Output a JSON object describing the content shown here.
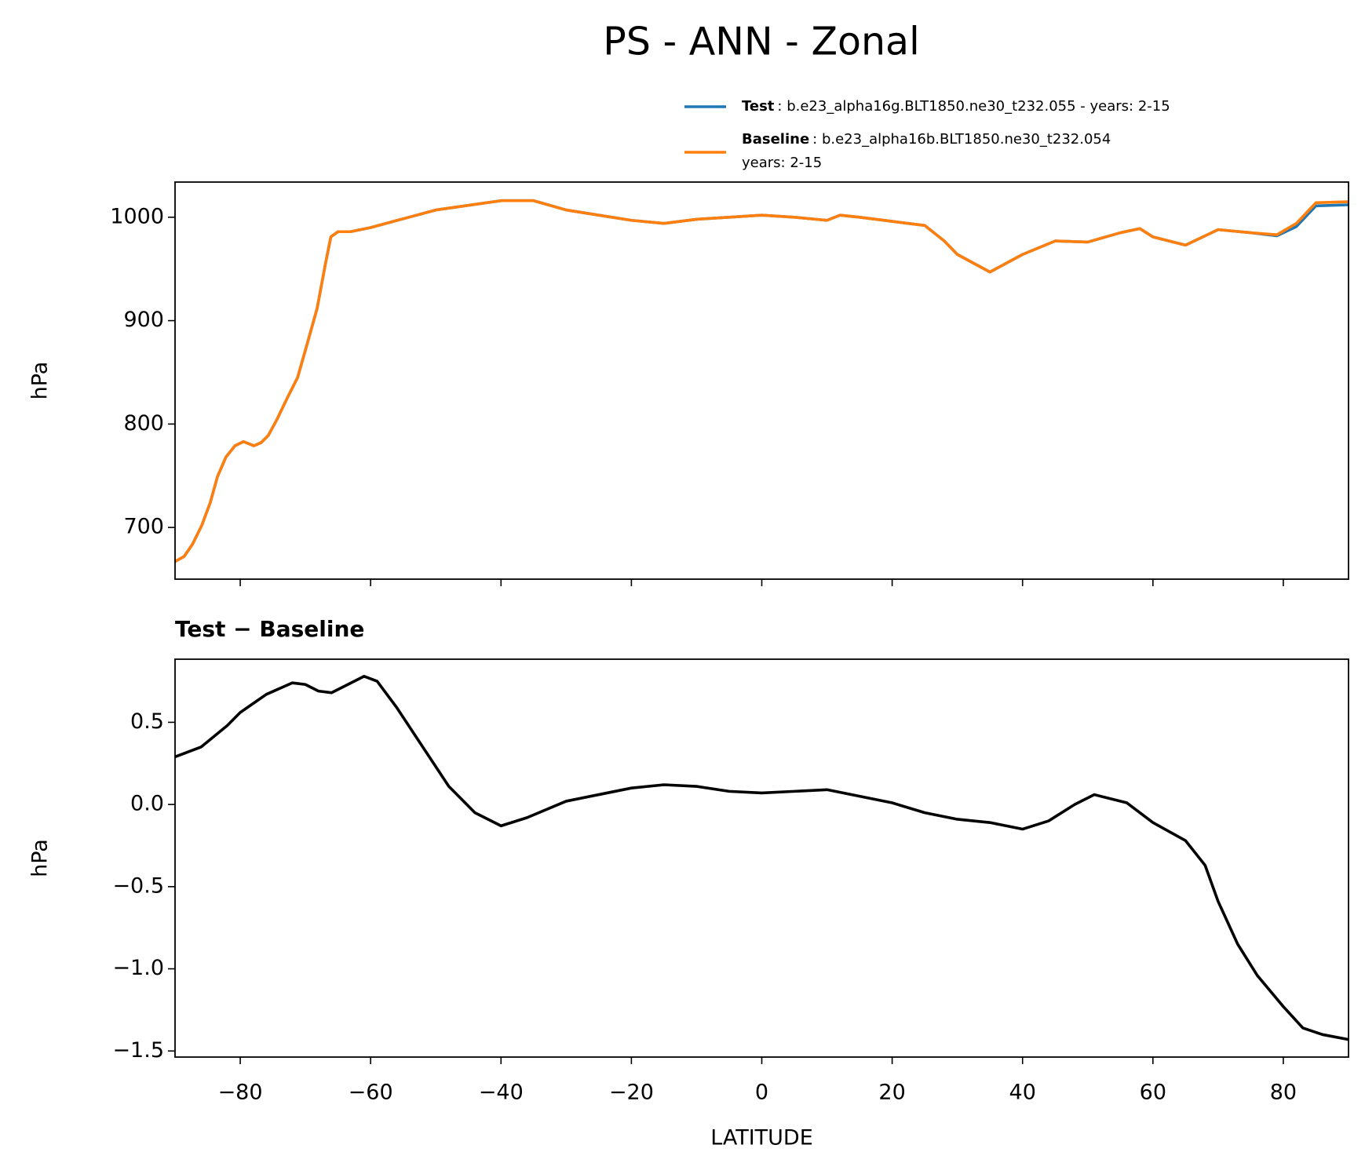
{
  "title": "PS - ANN - Zonal",
  "chart_data": [
    {
      "type": "line",
      "ylabel": "hPa",
      "x": [
        -90,
        -88.6,
        -87.3,
        -85.9,
        -84.6,
        -83.5,
        -82.2,
        -80.8,
        -79.5,
        -77.9,
        -76.8,
        -75.7,
        -74.4,
        -72.8,
        -71.2,
        -69.8,
        -68.2,
        -66.9,
        -66.1,
        -65,
        -63.1,
        -60,
        -50,
        -40,
        -35,
        -30,
        -25,
        -20,
        -15,
        -10,
        -5,
        0,
        5,
        10,
        12,
        15,
        20,
        25,
        28,
        30,
        35,
        40,
        45,
        50,
        55,
        58,
        60,
        65,
        70,
        75,
        79,
        82,
        85,
        90
      ],
      "series": [
        {
          "name": "Test",
          "description": [
            ": b.e23_alpha16g.BLT1850.ne30_t232.055 - years: 2-15"
          ],
          "color": "#1f77b4",
          "values": [
            667,
            672,
            684,
            702,
            724,
            749,
            768,
            779,
            783,
            779,
            782,
            789,
            804,
            825,
            845,
            876,
            912,
            956,
            981,
            986,
            986,
            990,
            1007,
            1016,
            1016,
            1007,
            1002,
            997,
            994,
            998,
            1000,
            1002,
            1000,
            997,
            1002,
            1000,
            996,
            992,
            977,
            964,
            947,
            964,
            977,
            976,
            985,
            989,
            981,
            973,
            988,
            985,
            982,
            991,
            1011,
            1012
          ]
        },
        {
          "name": "Baseline",
          "description": [
            ": b.e23_alpha16b.BLT1850.ne30_t232.054",
            "years: 2-15"
          ],
          "color": "#ff7f0e",
          "values": [
            667,
            672,
            684,
            702,
            724,
            749,
            768,
            779,
            783,
            779,
            782,
            789,
            804,
            825,
            845,
            876,
            912,
            956,
            981,
            986,
            986,
            990,
            1007,
            1016,
            1016,
            1007,
            1002,
            997,
            994,
            998,
            1000,
            1002,
            1000,
            997,
            1002,
            1000,
            996,
            992,
            977,
            964,
            947,
            964,
            977,
            976,
            985,
            989,
            981,
            973,
            988,
            985,
            983,
            994,
            1014,
            1015
          ]
        }
      ],
      "xlim": [
        -90,
        90
      ],
      "xticks": [
        -80,
        -60,
        -40,
        -20,
        0,
        20,
        40,
        60,
        80
      ],
      "ylim": [
        650,
        1034
      ],
      "yticks": [
        700,
        800,
        900,
        1000
      ]
    },
    {
      "type": "line",
      "title": "Test − Baseline",
      "xlabel": "LATITUDE",
      "ylabel": "hPa",
      "x": [
        -90,
        -86,
        -82,
        -80,
        -76,
        -72,
        -70,
        -68,
        -66,
        -64,
        -61,
        -59,
        -56,
        -52,
        -48,
        -44,
        -40,
        -36,
        -30,
        -25,
        -20,
        -15,
        -10,
        -5,
        0,
        5,
        10,
        15,
        20,
        25,
        30,
        35,
        40,
        44,
        48,
        51,
        56,
        60,
        65,
        68,
        70,
        73,
        76,
        80,
        83,
        86,
        90
      ],
      "series": [
        {
          "color": "#000000",
          "values": [
            0.29,
            0.35,
            0.48,
            0.56,
            0.67,
            0.74,
            0.73,
            0.69,
            0.68,
            0.72,
            0.78,
            0.75,
            0.59,
            0.35,
            0.11,
            -0.05,
            -0.13,
            -0.08,
            0.02,
            0.06,
            0.1,
            0.12,
            0.11,
            0.08,
            0.07,
            0.08,
            0.09,
            0.05,
            0.01,
            -0.05,
            -0.09,
            -0.11,
            -0.15,
            -0.1,
            0.0,
            0.06,
            0.01,
            -0.11,
            -0.22,
            -0.37,
            -0.59,
            -0.85,
            -1.04,
            -1.23,
            -1.36,
            -1.4,
            -1.43
          ]
        }
      ],
      "xlim": [
        -90,
        90
      ],
      "xticks": [
        {
          "value": -80,
          "label": "−80"
        },
        {
          "value": -60,
          "label": "−60"
        },
        {
          "value": -40,
          "label": "−40"
        },
        {
          "value": -20,
          "label": "−20"
        },
        0,
        20,
        40,
        60,
        80
      ],
      "ylim": [
        -1.537,
        0.884
      ],
      "yticks": [
        {
          "value": 0.5,
          "label": "0.5"
        },
        {
          "value": 0,
          "label": "0.0"
        },
        {
          "value": -0.5,
          "label": "−0.5"
        },
        {
          "value": -1,
          "label": "−1.0"
        },
        {
          "value": -1.5,
          "label": "−1.5"
        }
      ]
    }
  ]
}
